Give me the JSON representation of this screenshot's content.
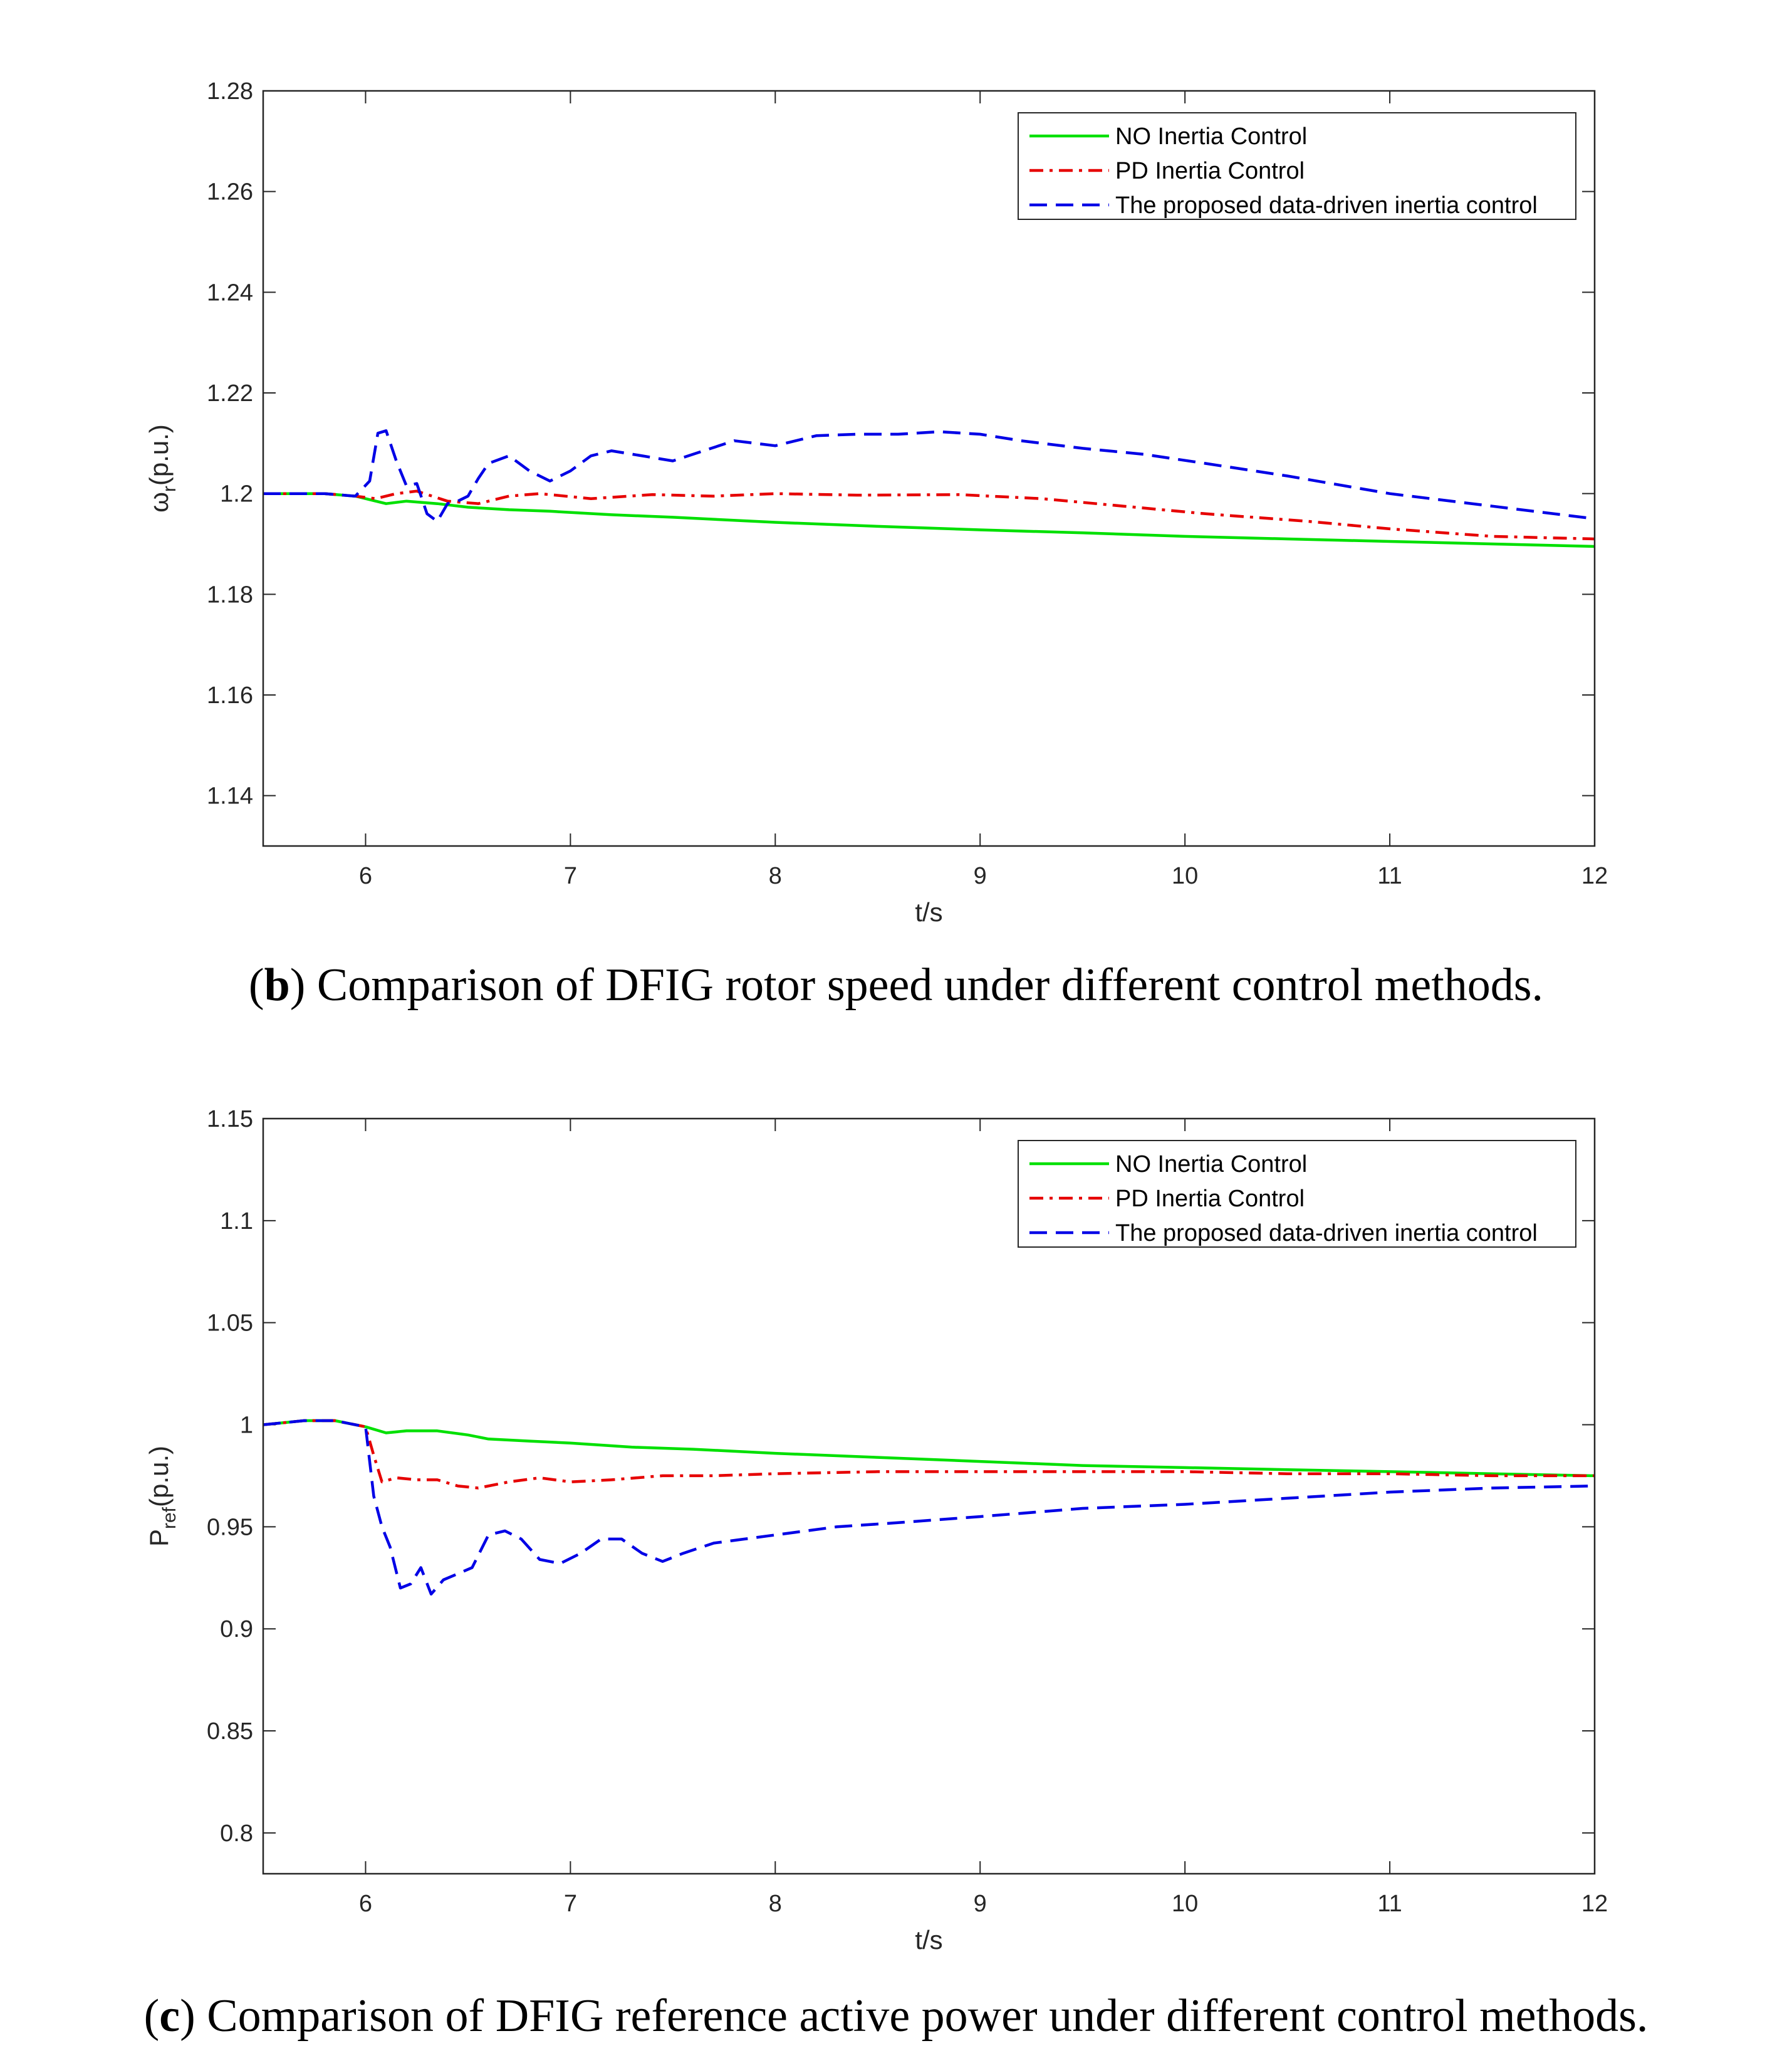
{
  "chart_data": [
    {
      "type": "line",
      "ylabel_main": "ω",
      "ylabel_sub": "r",
      "ylabel_unit": "(p.u.)",
      "xlabel": "t/s",
      "xlim": [
        5.5,
        12
      ],
      "ylim": [
        1.13,
        1.28
      ],
      "xticks": [
        "6",
        "7",
        "8",
        "9",
        "10",
        "11",
        "12"
      ],
      "yticks": [
        "1.14",
        "1.16",
        "1.18",
        "1.2",
        "1.22",
        "1.24",
        "1.26",
        "1.28"
      ],
      "legend": [
        "NO Inertia Control",
        "PD Inertia Control",
        "The proposed data-driven inertia control"
      ],
      "caption_letter": "b",
      "caption_text": " Comparison of DFIG rotor speed under different control methods.",
      "series": [
        {
          "name": "NO Inertia Control",
          "color": "#00e000",
          "style": "solid",
          "x": [
            5.5,
            5.7,
            5.8,
            5.95,
            6.05,
            6.1,
            6.2,
            6.35,
            6.5,
            6.7,
            6.9,
            7.2,
            7.5,
            8.0,
            8.5,
            9.0,
            9.5,
            10.0,
            10.5,
            11.0,
            11.5,
            12.0
          ],
          "y": [
            1.2,
            1.2,
            1.2,
            1.1995,
            1.1985,
            1.198,
            1.1985,
            1.198,
            1.1973,
            1.1968,
            1.1965,
            1.1958,
            1.1953,
            1.1943,
            1.1935,
            1.1928,
            1.1922,
            1.1915,
            1.191,
            1.1905,
            1.19,
            1.1895
          ]
        },
        {
          "name": "PD Inertia Control",
          "color": "#e60000",
          "style": "dashdot",
          "x": [
            5.5,
            5.7,
            5.8,
            5.95,
            6.05,
            6.15,
            6.25,
            6.4,
            6.55,
            6.7,
            6.85,
            7.1,
            7.4,
            7.7,
            8.0,
            8.4,
            8.9,
            9.3,
            9.7,
            10.1,
            10.6,
            11.0,
            11.5,
            12.0
          ],
          "y": [
            1.2,
            1.2,
            1.2,
            1.1995,
            1.199,
            1.2,
            1.2005,
            1.1985,
            1.198,
            1.1995,
            1.2,
            1.199,
            1.1998,
            1.1995,
            1.2,
            1.1997,
            1.1998,
            1.199,
            1.1975,
            1.196,
            1.1945,
            1.193,
            1.1915,
            1.191
          ]
        },
        {
          "name": "The proposed data-driven inertia control",
          "color": "#0000e6",
          "style": "dashed",
          "x": [
            5.5,
            5.7,
            5.8,
            5.95,
            6.02,
            6.06,
            6.1,
            6.15,
            6.2,
            6.25,
            6.3,
            6.35,
            6.4,
            6.45,
            6.5,
            6.55,
            6.6,
            6.7,
            6.8,
            6.9,
            7.0,
            7.1,
            7.2,
            7.35,
            7.5,
            7.65,
            7.8,
            8.0,
            8.2,
            8.4,
            8.6,
            8.8,
            9.0,
            9.2,
            9.5,
            9.8,
            10.1,
            10.5,
            11.0,
            11.5,
            12.0
          ],
          "y": [
            1.2,
            1.2,
            1.2,
            1.1995,
            1.2025,
            1.212,
            1.2125,
            1.2065,
            1.2015,
            1.202,
            1.196,
            1.1945,
            1.198,
            1.1985,
            1.1995,
            1.203,
            1.206,
            1.2075,
            1.2045,
            1.2025,
            1.2045,
            1.2075,
            1.2085,
            1.2075,
            1.2065,
            1.2085,
            1.2105,
            1.2095,
            1.2115,
            1.2118,
            1.2118,
            1.2123,
            1.2118,
            1.2105,
            1.209,
            1.2078,
            1.206,
            1.2035,
            1.2,
            1.1975,
            1.195
          ]
        }
      ]
    },
    {
      "type": "line",
      "ylabel_main": "P",
      "ylabel_sub": "ref",
      "ylabel_unit": "(p.u.)",
      "xlabel": "t/s",
      "xlim": [
        5.5,
        12
      ],
      "ylim": [
        0.78,
        1.15
      ],
      "xticks": [
        "6",
        "7",
        "8",
        "9",
        "10",
        "11",
        "12"
      ],
      "yticks": [
        "0.8",
        "0.85",
        "0.9",
        "0.95",
        "1",
        "1.05",
        "1.1",
        "1.15"
      ],
      "legend": [
        "NO Inertia Control",
        "PD Inertia Control",
        "The proposed data-driven inertia control"
      ],
      "caption_letter": "c",
      "caption_text": " Comparison of DFIG reference active power under different control methods.",
      "series": [
        {
          "name": "NO Inertia Control",
          "color": "#00e000",
          "style": "solid",
          "x": [
            5.5,
            5.7,
            5.85,
            6.0,
            6.1,
            6.2,
            6.35,
            6.5,
            6.6,
            6.8,
            7.0,
            7.3,
            7.6,
            8.0,
            8.5,
            9.0,
            9.5,
            10.0,
            10.5,
            11.0,
            11.5,
            12.0
          ],
          "y": [
            1.0,
            1.002,
            1.002,
            0.999,
            0.996,
            0.997,
            0.997,
            0.995,
            0.993,
            0.992,
            0.991,
            0.989,
            0.988,
            0.986,
            0.984,
            0.982,
            0.98,
            0.979,
            0.978,
            0.977,
            0.976,
            0.975
          ]
        },
        {
          "name": "PD Inertia Control",
          "color": "#e60000",
          "style": "dashdot",
          "x": [
            5.5,
            5.7,
            5.85,
            6.0,
            6.04,
            6.08,
            6.15,
            6.25,
            6.35,
            6.45,
            6.55,
            6.7,
            6.85,
            7.0,
            7.2,
            7.45,
            7.7,
            8.0,
            8.5,
            9.0,
            9.5,
            10.0,
            10.5,
            11.0,
            11.5,
            12.0
          ],
          "y": [
            1.0,
            1.002,
            1.002,
            0.999,
            0.985,
            0.972,
            0.974,
            0.973,
            0.973,
            0.97,
            0.969,
            0.972,
            0.974,
            0.972,
            0.973,
            0.975,
            0.975,
            0.976,
            0.977,
            0.977,
            0.977,
            0.977,
            0.976,
            0.976,
            0.975,
            0.975
          ]
        },
        {
          "name": "The proposed data-driven inertia control",
          "color": "#0000e6",
          "style": "dashed",
          "x": [
            5.5,
            5.7,
            5.85,
            6.0,
            6.04,
            6.08,
            6.12,
            6.17,
            6.22,
            6.27,
            6.32,
            6.38,
            6.45,
            6.52,
            6.6,
            6.68,
            6.76,
            6.85,
            6.95,
            7.05,
            7.15,
            7.25,
            7.35,
            7.45,
            7.55,
            7.7,
            7.85,
            8.0,
            8.3,
            8.6,
            9.0,
            9.5,
            10.0,
            10.5,
            11.0,
            11.5,
            12.0
          ],
          "y": [
            1.0,
            1.002,
            1.002,
            0.999,
            0.965,
            0.95,
            0.94,
            0.92,
            0.922,
            0.93,
            0.917,
            0.924,
            0.927,
            0.93,
            0.946,
            0.948,
            0.944,
            0.934,
            0.932,
            0.937,
            0.944,
            0.944,
            0.937,
            0.933,
            0.937,
            0.942,
            0.944,
            0.946,
            0.95,
            0.952,
            0.955,
            0.959,
            0.961,
            0.964,
            0.967,
            0.969,
            0.97
          ]
        }
      ]
    }
  ]
}
